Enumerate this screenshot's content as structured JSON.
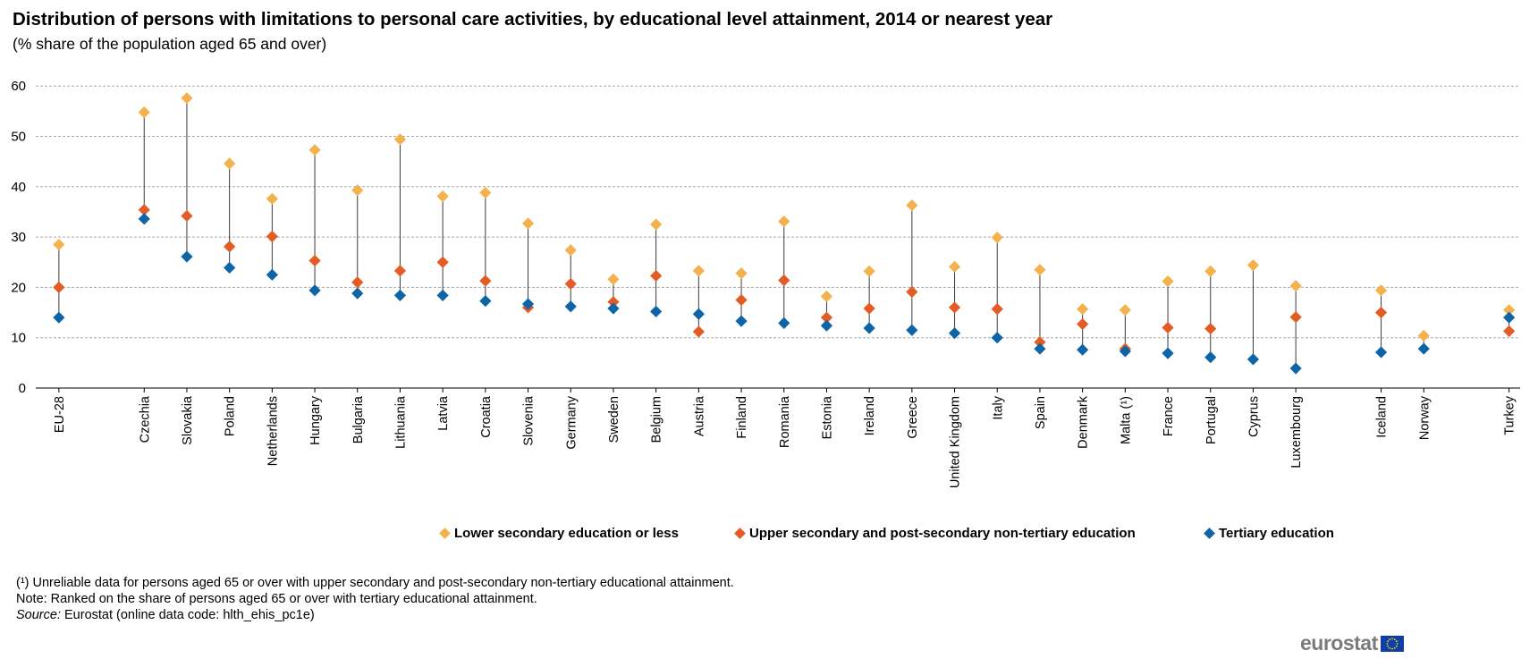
{
  "title": "Distribution of persons with limitations to personal care activities, by educational level attainment, 2014 or nearest year",
  "subtitle": "(% share of the population aged 65 and over)",
  "chart_data": {
    "type": "scatter",
    "categories": [
      "EU-28",
      "Czechia",
      "Slovakia",
      "Poland",
      "Netherlands",
      "Hungary",
      "Bulgaria",
      "Lithuania",
      "Latvia",
      "Croatia",
      "Slovenia",
      "Germany",
      "Sweden",
      "Belgium",
      "Austria",
      "Finland",
      "Romania",
      "Estonia",
      "Ireland",
      "Greece",
      "United Kingdom",
      "Italy",
      "Spain",
      "Denmark",
      "Malta (¹)",
      "France",
      "Portugal",
      "Cyprus",
      "Luxembourg",
      "Iceland",
      "Norway",
      "Turkey"
    ],
    "series": [
      {
        "name": "Lower secondary education or less",
        "color": "#f4b24f",
        "values": [
          28.5,
          54.8,
          57.6,
          44.6,
          37.6,
          47.3,
          39.3,
          49.4,
          38.1,
          38.8,
          32.7,
          27.4,
          21.6,
          32.5,
          23.3,
          22.8,
          33.1,
          18.2,
          23.2,
          36.3,
          24.1,
          29.9,
          23.5,
          15.7,
          15.5,
          21.2,
          23.2,
          24.4,
          20.3,
          19.4,
          10.4,
          15.5
        ]
      },
      {
        "name": "Upper secondary and post-secondary non-tertiary education",
        "color": "#e35b25",
        "values": [
          20.0,
          35.4,
          34.2,
          28.1,
          30.1,
          25.3,
          21.0,
          23.3,
          25.0,
          21.3,
          16.0,
          20.7,
          17.1,
          22.3,
          11.2,
          17.5,
          21.4,
          14.0,
          15.8,
          19.1,
          16.0,
          15.7,
          9.1,
          12.7,
          7.8,
          12.0,
          11.8,
          null,
          14.1,
          15.0,
          null,
          11.3
        ]
      },
      {
        "name": "Tertiary education",
        "color": "#0d64a6",
        "values": [
          14.0,
          33.6,
          26.1,
          23.9,
          22.5,
          19.4,
          18.8,
          18.4,
          18.4,
          17.3,
          16.7,
          16.2,
          15.8,
          15.2,
          14.7,
          13.3,
          12.9,
          12.4,
          11.9,
          11.5,
          10.9,
          10.0,
          7.8,
          7.6,
          7.3,
          6.9,
          6.1,
          5.7,
          3.9,
          7.1,
          7.8,
          14.0
        ]
      }
    ],
    "ylim": [
      0,
      60
    ],
    "yticks": [
      0,
      10,
      20,
      30,
      40,
      50,
      60
    ],
    "grid": true,
    "legend_position": "bottom"
  },
  "notes": {
    "footnote1": "(¹) Unreliable data for persons aged 65 or over with upper secondary and post-secondary non-tertiary educational attainment.",
    "note": "Note: Ranked on the share of persons aged 65 or over with tertiary educational attainment.",
    "source_label": "Source:",
    "source_text": " Eurostat (online data code: hlth_ehis_pc1e)"
  },
  "logo": {
    "text": "eurostat",
    "flag_color": "#0f3ea8",
    "star_color": "#ffdd00"
  }
}
